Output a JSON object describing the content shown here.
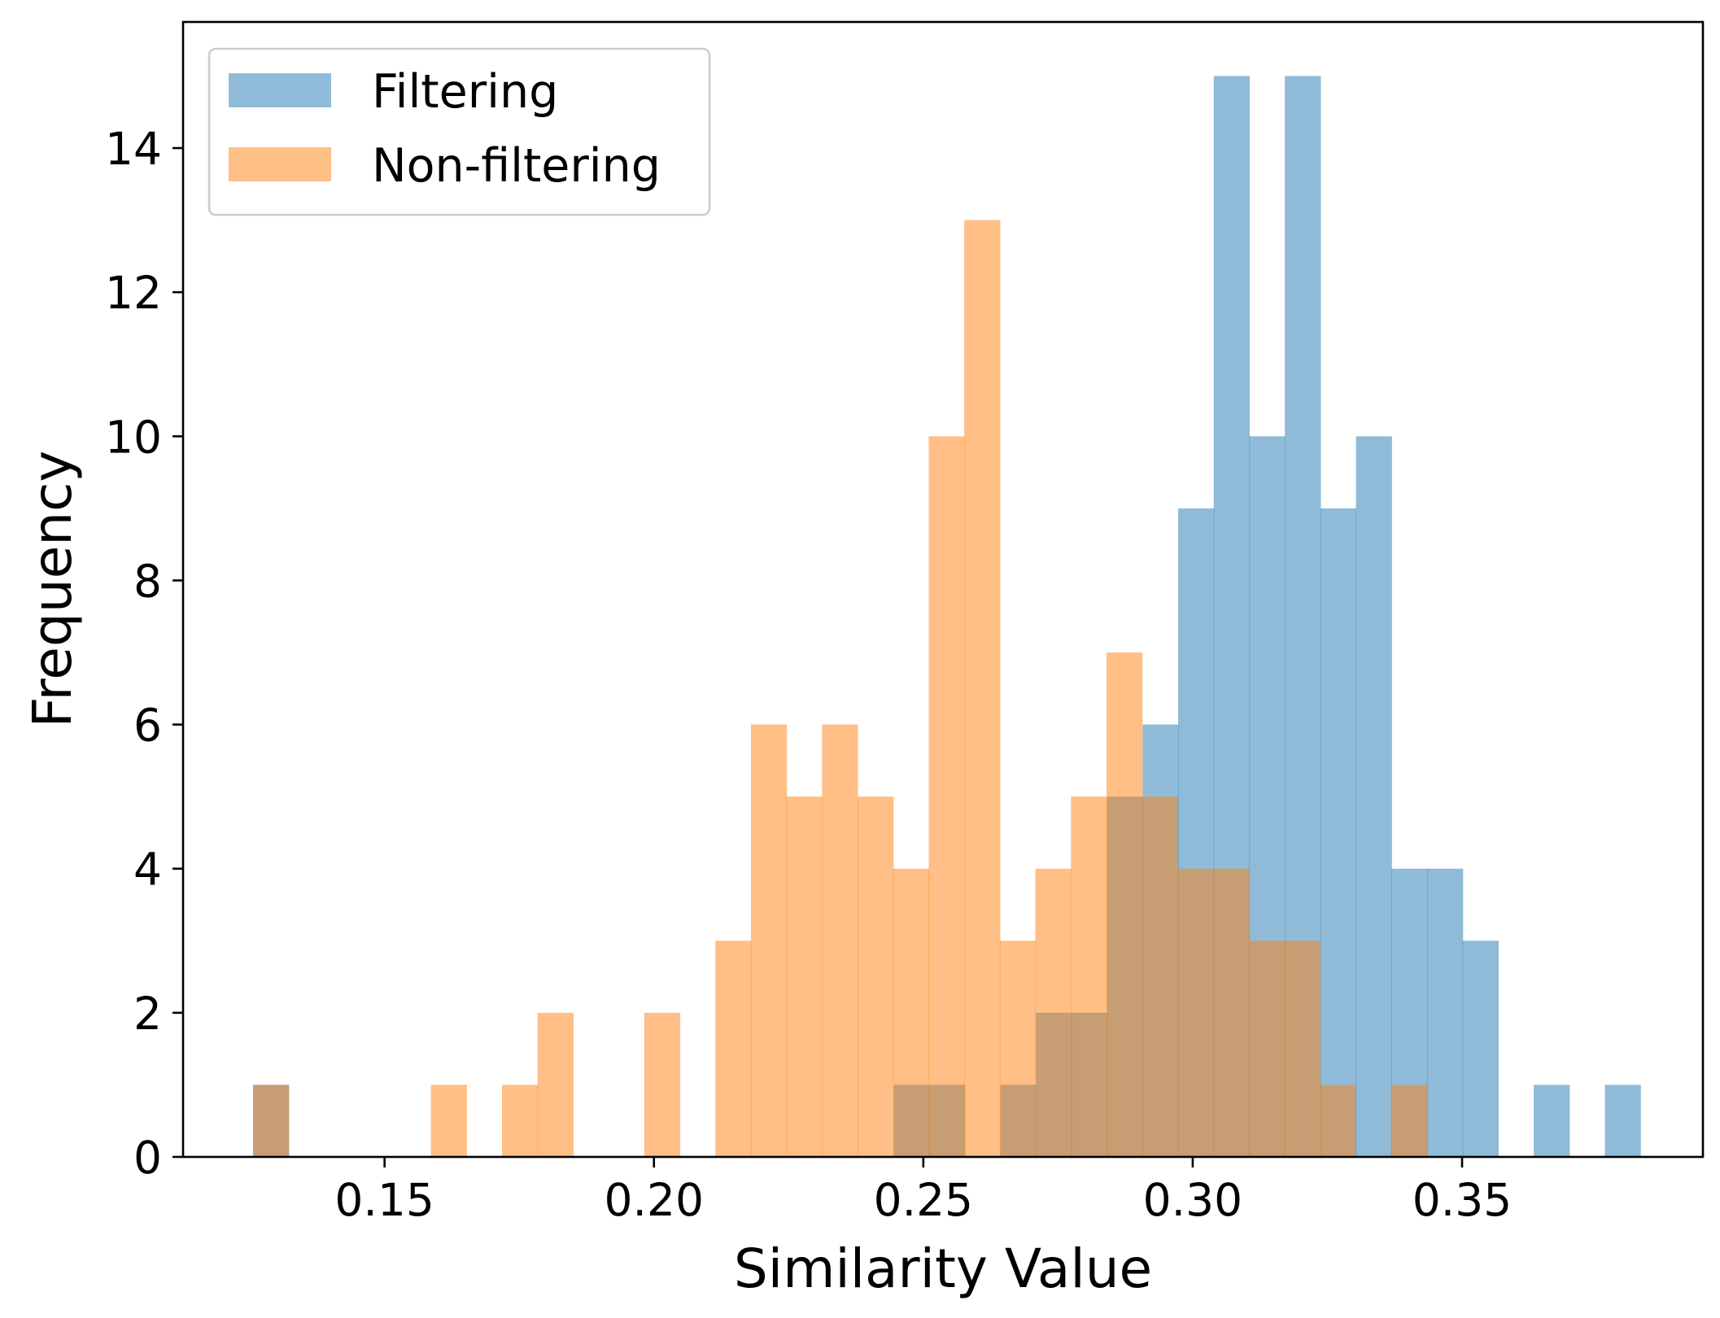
{
  "chart_data": {
    "type": "histogram",
    "title": "",
    "xlabel": "Similarity Value",
    "ylabel": "Frequency",
    "xlim": [
      0.1126,
      0.3947
    ],
    "ylim": [
      0,
      15.75
    ],
    "xticks": [
      {
        "value": 0.15,
        "label": "0.15"
      },
      {
        "value": 0.2,
        "label": "0.20"
      },
      {
        "value": 0.25,
        "label": "0.25"
      },
      {
        "value": 0.3,
        "label": "0.30"
      },
      {
        "value": 0.35,
        "label": "0.35"
      }
    ],
    "yticks": [
      {
        "value": 0,
        "label": "0"
      },
      {
        "value": 2,
        "label": "2"
      },
      {
        "value": 4,
        "label": "4"
      },
      {
        "value": 6,
        "label": "6"
      },
      {
        "value": 8,
        "label": "8"
      },
      {
        "value": 10,
        "label": "10"
      },
      {
        "value": 12,
        "label": "12"
      },
      {
        "value": 14,
        "label": "14"
      }
    ],
    "grid": false,
    "legend_position": "upper-left",
    "overlap_color": "#c69c73",
    "series": [
      {
        "name": "Filtering",
        "color": "#1f77b4",
        "alpha": 0.5,
        "bins": [
          {
            "x0": 0.1256,
            "x1": 0.1322,
            "count": 1
          },
          {
            "x0": 0.2445,
            "x1": 0.2511,
            "count": 1
          },
          {
            "x0": 0.2511,
            "x1": 0.2577,
            "count": 1
          },
          {
            "x0": 0.2643,
            "x1": 0.2709,
            "count": 1
          },
          {
            "x0": 0.2709,
            "x1": 0.2775,
            "count": 2
          },
          {
            "x0": 0.2775,
            "x1": 0.2841,
            "count": 2
          },
          {
            "x0": 0.2841,
            "x1": 0.2907,
            "count": 5
          },
          {
            "x0": 0.2907,
            "x1": 0.2973,
            "count": 6
          },
          {
            "x0": 0.2973,
            "x1": 0.3039,
            "count": 9
          },
          {
            "x0": 0.3039,
            "x1": 0.3105,
            "count": 15
          },
          {
            "x0": 0.3105,
            "x1": 0.3171,
            "count": 10
          },
          {
            "x0": 0.3171,
            "x1": 0.3237,
            "count": 15
          },
          {
            "x0": 0.3237,
            "x1": 0.3303,
            "count": 9
          },
          {
            "x0": 0.3303,
            "x1": 0.3369,
            "count": 10
          },
          {
            "x0": 0.3369,
            "x1": 0.3435,
            "count": 4
          },
          {
            "x0": 0.3435,
            "x1": 0.3501,
            "count": 4
          },
          {
            "x0": 0.3501,
            "x1": 0.3567,
            "count": 3
          },
          {
            "x0": 0.3633,
            "x1": 0.3699,
            "count": 1
          },
          {
            "x0": 0.3765,
            "x1": 0.3831,
            "count": 1
          }
        ]
      },
      {
        "name": "Non-filtering",
        "color": "#ff7f0e",
        "alpha": 0.5,
        "bins": [
          {
            "x0": 0.1256,
            "x1": 0.1322,
            "count": 1
          },
          {
            "x0": 0.1586,
            "x1": 0.1652,
            "count": 1
          },
          {
            "x0": 0.1718,
            "x1": 0.1784,
            "count": 1
          },
          {
            "x0": 0.1784,
            "x1": 0.185,
            "count": 2
          },
          {
            "x0": 0.1982,
            "x1": 0.2048,
            "count": 2
          },
          {
            "x0": 0.2114,
            "x1": 0.218,
            "count": 3
          },
          {
            "x0": 0.218,
            "x1": 0.2246,
            "count": 6
          },
          {
            "x0": 0.2246,
            "x1": 0.2312,
            "count": 5
          },
          {
            "x0": 0.2312,
            "x1": 0.2378,
            "count": 6
          },
          {
            "x0": 0.2378,
            "x1": 0.2444,
            "count": 5
          },
          {
            "x0": 0.2444,
            "x1": 0.251,
            "count": 4
          },
          {
            "x0": 0.251,
            "x1": 0.2576,
            "count": 10
          },
          {
            "x0": 0.2576,
            "x1": 0.2642,
            "count": 13
          },
          {
            "x0": 0.2642,
            "x1": 0.2708,
            "count": 3
          },
          {
            "x0": 0.2708,
            "x1": 0.2774,
            "count": 4
          },
          {
            "x0": 0.2774,
            "x1": 0.284,
            "count": 5
          },
          {
            "x0": 0.284,
            "x1": 0.2906,
            "count": 7
          },
          {
            "x0": 0.2906,
            "x1": 0.2972,
            "count": 5
          },
          {
            "x0": 0.2972,
            "x1": 0.3038,
            "count": 4
          },
          {
            "x0": 0.3038,
            "x1": 0.3104,
            "count": 4
          },
          {
            "x0": 0.3104,
            "x1": 0.317,
            "count": 3
          },
          {
            "x0": 0.317,
            "x1": 0.3236,
            "count": 3
          },
          {
            "x0": 0.3236,
            "x1": 0.3302,
            "count": 1
          },
          {
            "x0": 0.3368,
            "x1": 0.3434,
            "count": 1
          }
        ]
      }
    ]
  }
}
